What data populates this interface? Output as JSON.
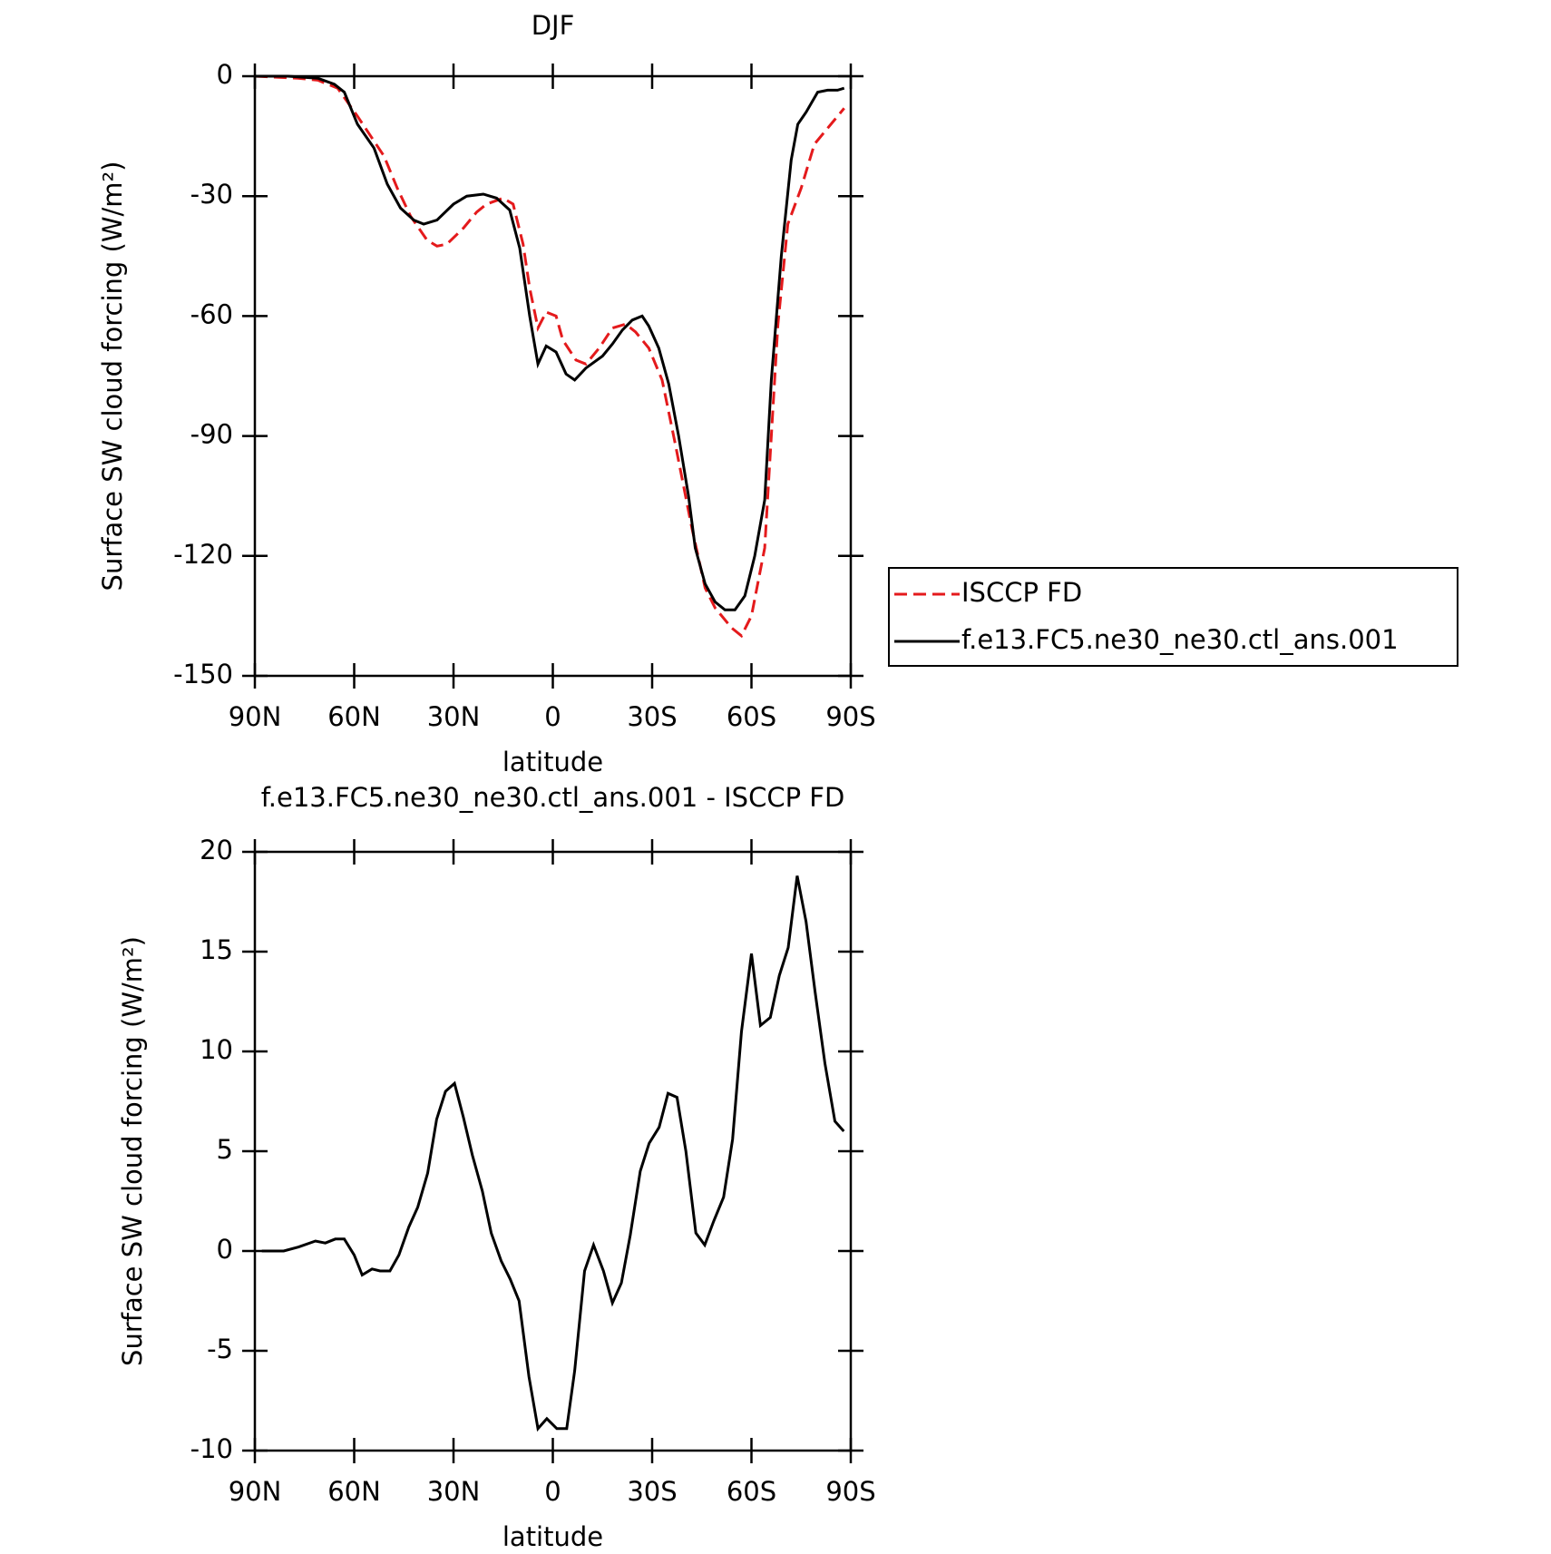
{
  "chart_data": [
    {
      "type": "line",
      "title": "DJF",
      "xlabel": "latitude",
      "ylabel": "Surface SW cloud forcing (W/m²)",
      "xlim": [
        90,
        -90
      ],
      "xticks": [
        {
          "value": 90,
          "label": "90N"
        },
        {
          "value": 60,
          "label": "60N"
        },
        {
          "value": 30,
          "label": "30N"
        },
        0,
        {
          "value": -30,
          "label": "30S"
        },
        {
          "value": -60,
          "label": "60S"
        },
        {
          "value": -90,
          "label": "90S"
        }
      ],
      "ylim": [
        -150,
        0
      ],
      "yticks": [
        -150,
        -120,
        -90,
        -60,
        -30,
        0
      ],
      "legend": "right",
      "series": [
        {
          "name": "ISCCP FD",
          "color": "#e41a1c",
          "dash": true,
          "x": [
            90,
            77,
            71,
            65,
            59,
            51,
            47,
            43,
            38,
            35,
            32,
            27,
            23,
            20,
            15,
            12,
            9,
            7,
            4.5,
            2,
            -1,
            -3,
            -7,
            -10,
            -14,
            -18,
            -22,
            -25,
            -29,
            -33,
            -37,
            -42,
            -46,
            -49,
            -54,
            -57,
            -60,
            -64,
            -66,
            -68,
            -71,
            -75,
            -79,
            -85,
            -88
          ],
          "values": [
            0,
            -0.5,
            -1,
            -3,
            -10,
            -20,
            -28,
            -35,
            -41,
            -42.5,
            -42,
            -38,
            -34,
            -32,
            -30.5,
            -32,
            -42,
            -53,
            -63,
            -59,
            -60,
            -66,
            -71,
            -72,
            -68,
            -63,
            -62,
            -64,
            -68,
            -76,
            -92,
            -113,
            -128,
            -133,
            -138,
            -140,
            -135,
            -118,
            -90,
            -62,
            -37,
            -28,
            -17,
            -11,
            -8
          ]
        },
        {
          "name": "f.e13.FC5.ne30_ne30.ctl_ans.001",
          "color": "#000000",
          "dash": false,
          "x": [
            90,
            80,
            71,
            66,
            63,
            59,
            54,
            50,
            46,
            42,
            39,
            35,
            30,
            26,
            21,
            17,
            13,
            10,
            7,
            4.5,
            2,
            -1,
            -4,
            -6.6,
            -10,
            -15,
            -18,
            -21,
            -24,
            -27,
            -29,
            -32,
            -35,
            -38,
            -41,
            -43,
            -46,
            -49,
            -52,
            -55,
            -58,
            -61,
            -64,
            -66,
            -69,
            -72,
            -74,
            -76.5,
            -80,
            -83,
            -86,
            -88
          ],
          "values": [
            0,
            0,
            -0.5,
            -2,
            -4,
            -12,
            -18,
            -27,
            -33,
            -36,
            -37,
            -36,
            -32,
            -30,
            -29.5,
            -30.5,
            -33.5,
            -43,
            -60,
            -72,
            -67.5,
            -69,
            -74.5,
            -76,
            -73,
            -70,
            -67,
            -63.5,
            -61,
            -60,
            -62.5,
            -68,
            -77,
            -90,
            -105,
            -118,
            -127,
            -131.5,
            -133.5,
            -133.5,
            -130,
            -120,
            -106,
            -76,
            -45,
            -21,
            -12,
            -9,
            -4,
            -3.5,
            -3.5,
            -3
          ]
        }
      ]
    },
    {
      "type": "line",
      "title": "f.e13.FC5.ne30_ne30.ctl_ans.001 - ISCCP FD",
      "xlabel": "latitude",
      "ylabel": "Surface SW cloud forcing (W/m²)",
      "xlim": [
        90,
        -90
      ],
      "xticks": [
        {
          "value": 90,
          "label": "90N"
        },
        {
          "value": 60,
          "label": "60N"
        },
        {
          "value": 30,
          "label": "30N"
        },
        0,
        {
          "value": -30,
          "label": "30S"
        },
        {
          "value": -60,
          "label": "60S"
        },
        {
          "value": -90,
          "label": "90S"
        }
      ],
      "ylim": [
        -10,
        20
      ],
      "yticks": [
        -10,
        -5,
        0,
        5,
        10,
        15,
        20
      ],
      "series": [
        {
          "color": "#000000",
          "dash": false,
          "x": [
            87.9,
            81.3,
            76.8,
            71.7,
            68.7,
            65.7,
            63.0,
            60.0,
            57.6,
            54.6,
            52.2,
            49.2,
            46.5,
            43.5,
            40.8,
            37.8,
            35.1,
            32.4,
            29.7,
            27.0,
            24.3,
            21.3,
            18.6,
            15.6,
            12.9,
            10.2,
            7.2,
            4.5,
            1.8,
            -1.2,
            -4.2,
            -6.6,
            -9.6,
            -12.3,
            -15.3,
            -18.0,
            -20.7,
            -23.4,
            -26.4,
            -29.1,
            -32.1,
            -34.8,
            -37.5,
            -40.2,
            -43.2,
            -45.9,
            -48.6,
            -51.6,
            -54.3,
            -57.0,
            -60.0,
            -62.7,
            -65.7,
            -68.4,
            -71.1,
            -73.8,
            -76.5,
            -79.2,
            -82.2,
            -85.2,
            -87.9
          ],
          "values": [
            0,
            0,
            0.2,
            0.5,
            0.4,
            0.6,
            0.6,
            -0.2,
            -1.2,
            -0.9,
            -1.0,
            -1.0,
            -0.2,
            1.2,
            2.2,
            3.9,
            6.6,
            8.0,
            8.4,
            6.7,
            4.8,
            3.0,
            0.9,
            -0.5,
            -1.4,
            -2.5,
            -6.3,
            -8.9,
            -8.4,
            -8.9,
            -8.9,
            -6.0,
            -1.0,
            0.3,
            -1.0,
            -2.6,
            -1.6,
            0.8,
            4.0,
            5.4,
            6.2,
            7.9,
            7.7,
            5.0,
            0.9,
            0.3,
            1.5,
            2.7,
            5.6,
            11.0,
            14.9,
            11.3,
            11.7,
            13.8,
            15.2,
            18.8,
            16.5,
            13.0,
            9.4,
            6.5,
            6.0
          ]
        }
      ]
    }
  ]
}
